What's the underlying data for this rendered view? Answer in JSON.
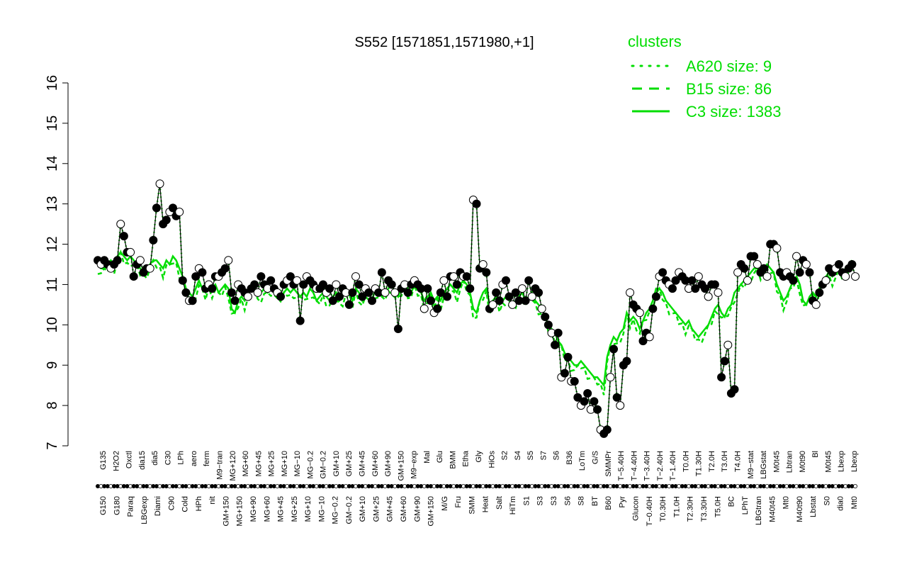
{
  "chart_data": {
    "type": "line",
    "title": "S552 [1571851,1571980,+1]",
    "xlabel": "",
    "ylabel": "",
    "ylim": [
      7,
      16
    ],
    "yticks": [
      7,
      8,
      9,
      10,
      11,
      12,
      13,
      14,
      15,
      16
    ],
    "grid": false,
    "legend": {
      "title": "clusters",
      "placement": "top-right",
      "entries": [
        {
          "label": "A620 size: 9",
          "style": "dotted"
        },
        {
          "label": "B15 size: 86",
          "style": "dashed"
        },
        {
          "label": "C3 size: 1383",
          "style": "solid"
        }
      ]
    },
    "colors": {
      "line": "#00dd00",
      "point_fill_dark": "#000000",
      "point_fill_light": "#ffffff"
    },
    "top_labels": [
      "G135",
      "H2O2",
      "Oxctl",
      "dia15",
      "dia5",
      "C30",
      "LPh",
      "aero",
      "ferm",
      "M9−tran",
      "MG+120",
      "MG+60",
      "MG+45",
      "MG+25",
      "MG+10",
      "MG−10",
      "MG−0.2",
      "GM−0.2",
      "GM+10",
      "GM+25",
      "GM+45",
      "GM+60",
      "GM+90",
      "GM+150",
      "M9−exp",
      "Mal",
      "Glu",
      "BMM",
      "Etha",
      "Gly",
      "HiOs",
      "S2",
      "S4",
      "S5",
      "S7",
      "S6",
      "B36",
      "LoTm",
      "G/S",
      "SMMPr",
      "T−5.40H",
      "T−4.40H",
      "T−3.40H",
      "T−2.40H",
      "T−1.40H",
      "T0.0H",
      "T1.30H",
      "T2.0H",
      "T3.0H",
      "T4.0H",
      "M9−stat",
      "LBGstat",
      "M0t45",
      "Lbtran",
      "M0t90",
      "Bl",
      "M0t45",
      "Lbexp",
      "Lbexp"
    ],
    "bottom_labels": [
      "G150",
      "G180",
      "Paraq",
      "LBGexp",
      "Diami",
      "C90",
      "Cold",
      "HPh",
      "nit",
      "GM+150",
      "MG+150",
      "MG+90",
      "MG+60",
      "MG+45",
      "MG+25",
      "MG+10",
      "MG−10",
      "MG−0.2",
      "GM−0.2",
      "GM+10",
      "GM+25",
      "GM+45",
      "GM+60",
      "GM+90",
      "GM+150",
      "M/G",
      "Fru",
      "SMM",
      "Heat",
      "Salt",
      "HiTm",
      "S1",
      "S3",
      "S3",
      "S6",
      "S8",
      "BT",
      "B60",
      "Pyr",
      "Glucon",
      "T−0.40H",
      "T0.30H",
      "T1.0H",
      "T2.30H",
      "T3.30H",
      "T5.0H",
      "BC",
      "LPhT",
      "LBGtran",
      "M40t45",
      "Mt0",
      "M40t90",
      "Lbstat",
      "S0",
      "dia0",
      "Mt0"
    ],
    "series": [
      {
        "name": "points",
        "values": [
          11.6,
          11.5,
          11.6,
          11.5,
          11.4,
          11.5,
          11.6,
          12.5,
          12.2,
          11.8,
          11.8,
          11.2,
          11.5,
          11.6,
          11.3,
          11.4,
          11.4,
          12.1,
          12.9,
          13.5,
          12.5,
          12.6,
          12.8,
          12.9,
          12.7,
          12.8,
          11.1,
          10.8,
          10.6,
          10.6,
          11.2,
          11.4,
          11.3,
          10.9,
          11.0,
          10.9,
          11.2,
          11.2,
          11.3,
          11.4,
          11.6,
          10.8,
          10.6,
          11.0,
          10.9,
          10.8,
          10.7,
          10.9,
          11.0,
          10.8,
          11.2,
          11.0,
          10.9,
          11.1,
          10.9,
          10.8,
          10.7,
          11.0,
          11.1,
          11.2,
          11.0,
          11.1,
          10.1,
          11.0,
          11.2,
          11.1,
          11.0,
          10.9,
          10.9,
          11.0,
          10.8,
          10.9,
          10.6,
          11.0,
          10.7,
          10.9,
          10.8,
          10.5,
          10.8,
          11.2,
          11.0,
          10.7,
          10.9,
          10.8,
          10.6,
          10.9,
          10.8,
          11.3,
          10.8,
          11.1,
          11.0,
          10.8,
          9.9,
          10.9,
          11.0,
          10.8,
          11.0,
          11.1,
          11.0,
          10.9,
          10.4,
          10.9,
          10.6,
          10.3,
          10.4,
          10.8,
          11.1,
          10.7,
          11.2,
          11.2,
          11.0,
          11.3,
          11.2,
          11.2,
          10.9,
          13.1,
          13.0,
          11.4,
          11.5,
          11.3,
          10.4,
          10.5,
          10.8,
          10.6,
          11.0,
          11.1,
          10.7,
          10.5,
          10.8,
          10.6,
          10.9,
          10.6,
          11.1,
          10.7,
          10.9,
          10.8,
          10.4,
          10.2,
          10.0,
          9.8,
          9.5,
          9.8,
          8.7,
          8.8,
          9.2,
          8.6,
          8.6,
          8.2,
          8.0,
          8.1,
          8.3,
          7.9,
          8.1,
          7.9,
          7.4,
          7.3,
          7.4,
          8.7,
          9.4,
          8.2,
          8.0,
          9.0,
          9.1,
          10.8,
          10.5,
          10.4,
          10.3,
          9.6,
          9.8,
          9.7,
          10.4,
          10.7,
          11.2,
          11.3,
          11.1,
          11.0,
          10.9,
          11.1,
          11.3,
          11.2,
          11.1,
          10.9,
          11.1,
          10.9,
          11.2,
          11.0,
          10.9,
          10.7,
          11.0,
          11.0,
          10.8,
          8.7,
          9.1,
          9.5,
          8.3,
          8.4,
          11.3,
          11.5,
          11.4,
          11.1,
          11.7,
          11.7,
          11.5,
          11.3,
          11.4,
          11.2,
          12.0,
          12.0,
          11.9,
          11.3,
          11.2,
          11.3,
          11.2,
          11.1,
          11.7,
          11.3,
          11.6,
          11.5,
          11.3,
          10.6,
          10.5,
          10.8,
          11.0,
          11.1,
          11.4,
          11.3,
          11.4,
          11.5,
          11.3,
          11.2,
          11.4,
          11.5,
          11.2
        ]
      },
      {
        "name": "C3 size: 1383",
        "values": [
          11.5,
          11.4,
          11.4,
          11.5,
          11.6,
          11.5,
          11.7,
          11.8,
          11.7,
          11.6,
          11.7,
          11.6,
          11.5,
          11.4,
          11.3,
          11.4,
          11.5,
          11.6,
          11.6,
          11.5,
          11.4,
          11.6,
          11.5,
          11.7,
          11.6,
          11.4,
          11.2,
          10.9,
          10.8,
          10.7,
          10.9,
          11.1,
          10.9,
          10.8,
          11.0,
          10.9,
          11.0,
          10.8,
          10.9,
          11.0,
          10.9,
          10.4,
          10.3,
          10.6,
          10.7,
          10.6,
          10.8,
          10.9,
          11.0,
          10.7,
          10.8,
          10.9,
          10.8,
          10.9,
          10.8,
          10.9,
          10.7,
          10.8,
          10.9,
          10.8,
          10.9,
          10.8,
          10.7,
          10.8,
          10.7,
          10.9,
          10.8,
          10.6,
          10.7,
          10.8,
          10.7,
          10.6,
          10.7,
          10.8,
          10.6,
          10.7,
          10.9,
          10.8,
          10.6,
          10.9,
          10.8,
          10.6,
          10.7,
          10.8,
          10.6,
          10.9,
          10.8,
          10.7,
          10.8,
          10.9,
          11.0,
          10.8,
          10.7,
          10.9,
          11.0,
          10.9,
          10.8,
          11.0,
          10.9,
          10.8,
          10.6,
          10.7,
          10.8,
          10.6,
          10.7,
          10.6,
          10.8,
          10.9,
          11.0,
          10.9,
          10.8,
          11.0,
          11.1,
          11.0,
          10.8,
          10.4,
          10.3,
          10.6,
          10.8,
          10.9,
          10.5,
          10.6,
          10.7,
          10.5,
          10.6,
          10.7,
          10.6,
          10.5,
          10.6,
          10.7,
          10.8,
          10.6,
          10.7,
          10.8,
          10.6,
          10.5,
          10.4,
          10.2,
          10.0,
          9.9,
          9.8,
          9.6,
          9.5,
          9.3,
          9.2,
          9.1,
          9.0,
          9.0,
          9.1,
          9.0,
          8.9,
          8.8,
          8.7,
          8.7,
          8.6,
          8.5,
          9.2,
          9.5,
          9.7,
          9.6,
          9.8,
          9.9,
          10.3,
          10.1,
          10.2,
          10.1,
          9.9,
          10.1,
          10.3,
          10.4,
          10.6,
          10.9,
          10.9,
          10.8,
          10.6,
          10.5,
          10.4,
          10.3,
          10.2,
          10.1,
          10.0,
          10.1,
          9.9,
          9.8,
          9.7,
          9.8,
          9.9,
          10.0,
          10.2,
          10.4,
          10.5,
          10.3,
          10.2,
          10.4,
          10.5,
          10.8,
          10.9,
          11.0,
          11.1,
          11.2,
          11.3,
          11.4,
          11.4,
          11.3,
          11.4,
          11.5,
          11.4,
          11.3,
          11.0,
          10.8,
          10.6,
          10.7,
          10.9,
          11.1,
          11.2,
          11.0,
          10.6,
          10.5,
          10.7,
          10.8,
          10.7,
          10.9,
          11.1,
          11.2,
          11.3,
          11.2,
          11.3,
          11.4,
          11.3,
          11.4,
          11.5,
          11.6
        ]
      }
    ]
  }
}
